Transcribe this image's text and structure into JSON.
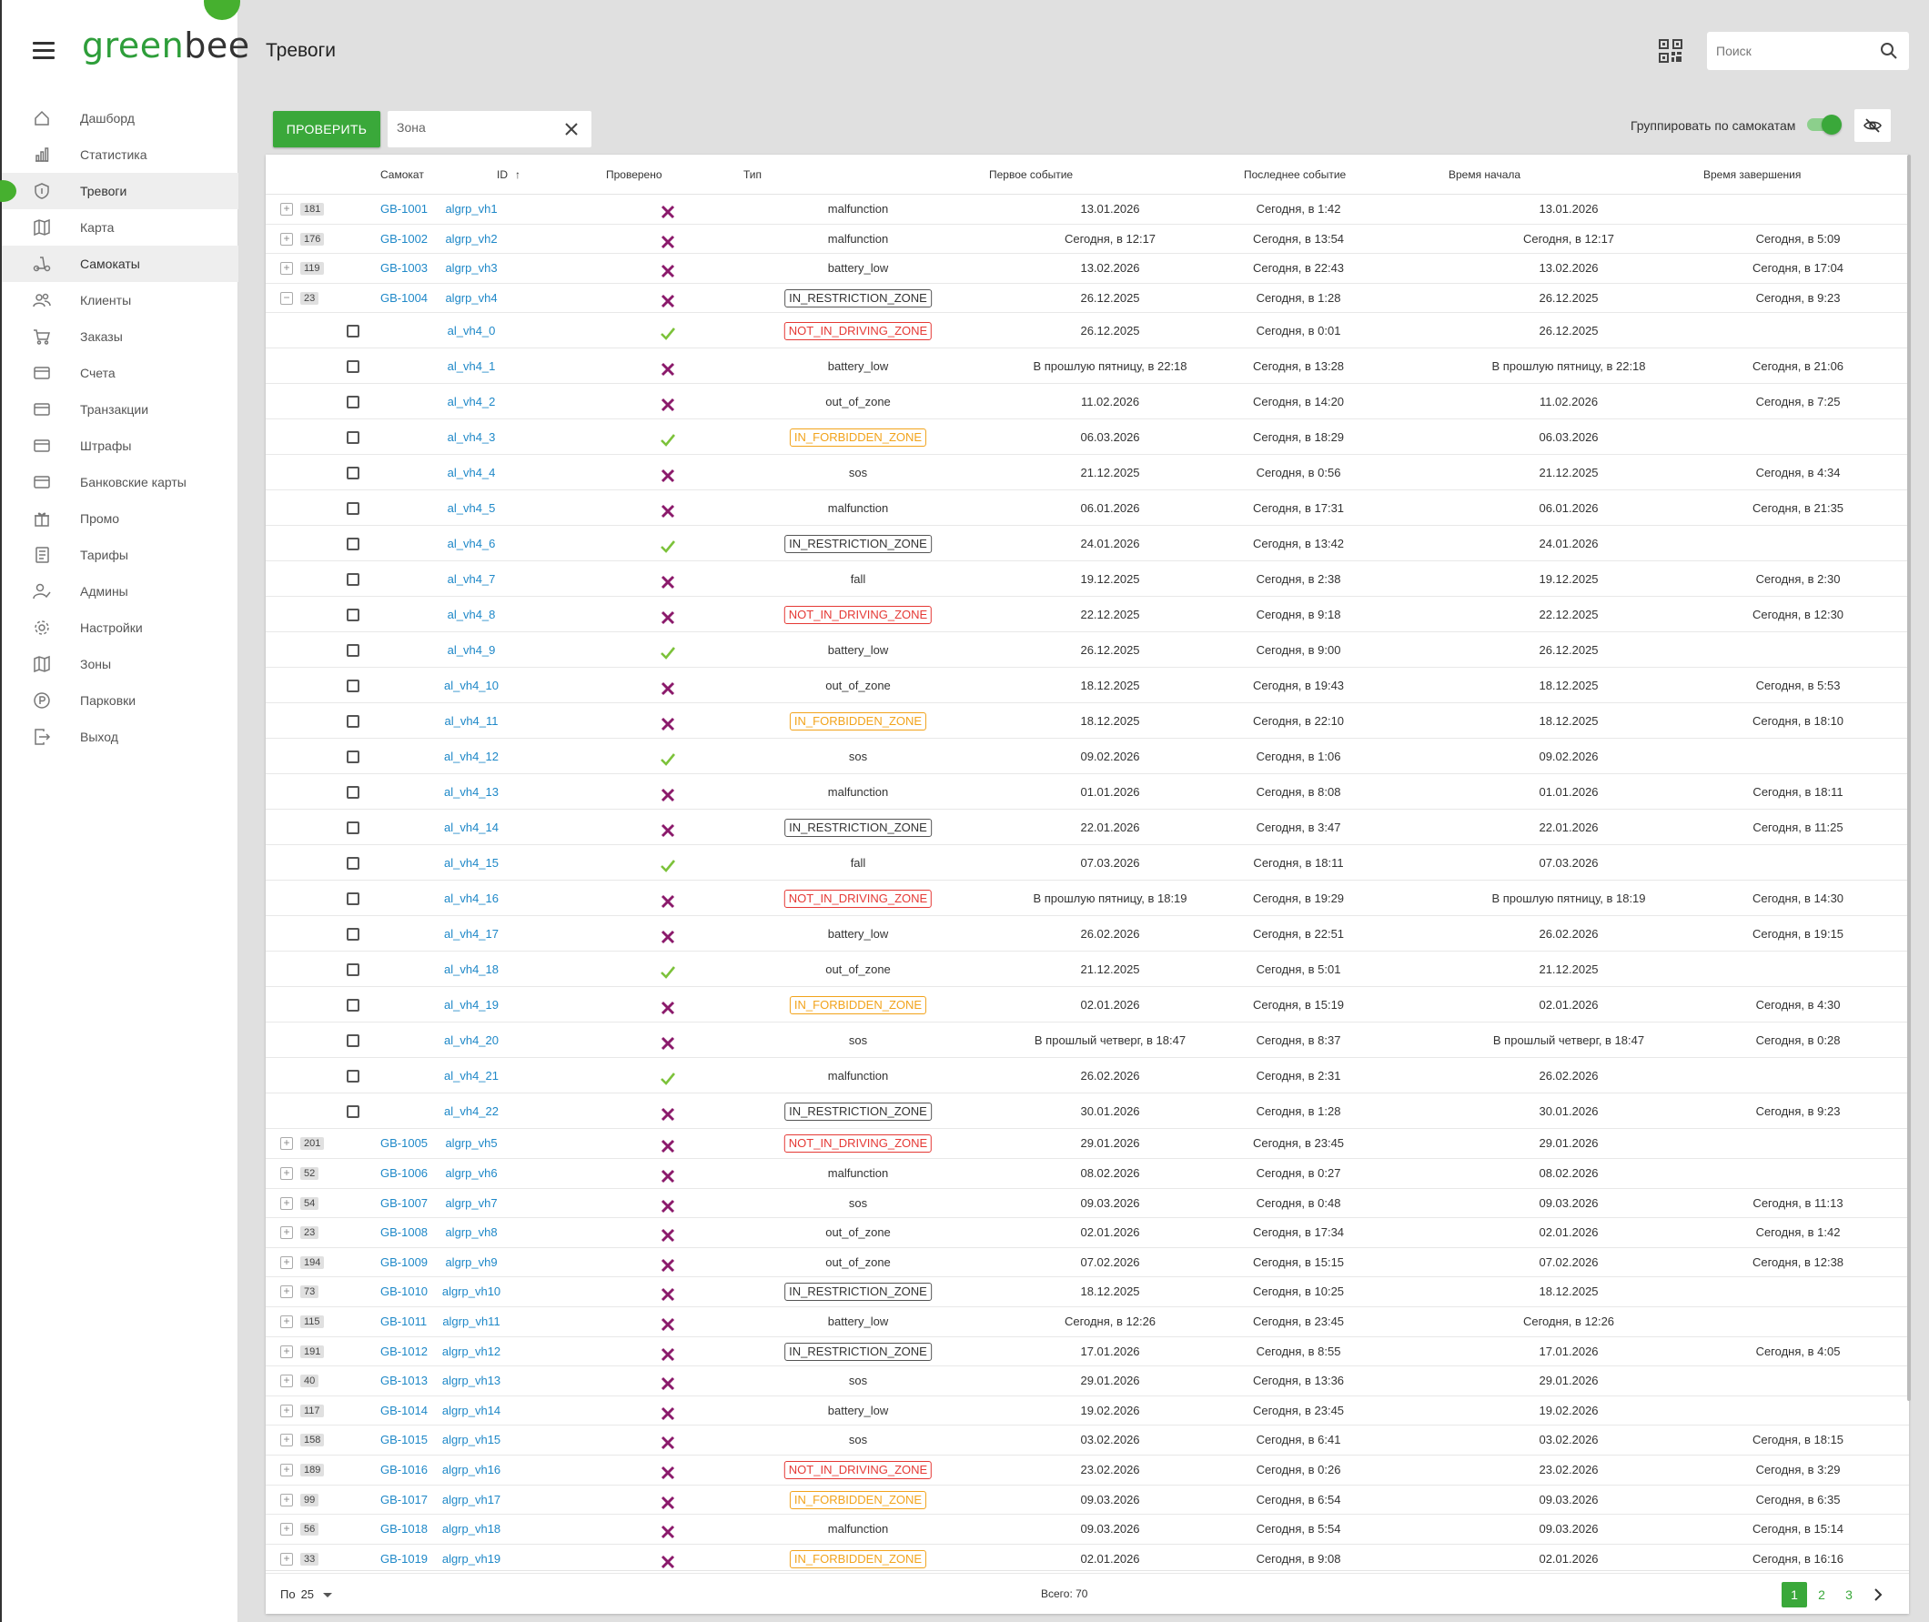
{
  "brand": {
    "logo_green": "green",
    "logo_dark": "bee"
  },
  "nav": [
    {
      "label": "Дашборд",
      "icon": "home-icon"
    },
    {
      "label": "Статистика",
      "icon": "bar-chart-icon"
    },
    {
      "label": "Тревоги",
      "icon": "shield-icon",
      "active": true
    },
    {
      "label": "Карта",
      "icon": "map-icon"
    },
    {
      "label": "Самокаты",
      "icon": "scooter-icon",
      "selected": true
    },
    {
      "label": "Клиенты",
      "icon": "users-icon"
    },
    {
      "label": "Заказы",
      "icon": "cart-icon"
    },
    {
      "label": "Счета",
      "icon": "card-icon"
    },
    {
      "label": "Транзакции",
      "icon": "card-icon"
    },
    {
      "label": "Штрафы",
      "icon": "card-icon"
    },
    {
      "label": "Банковские карты",
      "icon": "card-icon"
    },
    {
      "label": "Промо",
      "icon": "gift-icon"
    },
    {
      "label": "Тарифы",
      "icon": "list-icon"
    },
    {
      "label": "Админы",
      "icon": "user-check-icon"
    },
    {
      "label": "Настройки",
      "icon": "gear-icon"
    },
    {
      "label": "Зоны",
      "icon": "map-icon"
    },
    {
      "label": "Парковки",
      "icon": "parking-icon"
    },
    {
      "label": "Выход",
      "icon": "logout-icon"
    }
  ],
  "header": {
    "title": "Тревоги",
    "search_placeholder": "Поиск"
  },
  "toolbar": {
    "check_label": "ПРОВЕРИТЬ",
    "zone_placeholder": "Зона",
    "group_label": "Группировать по самокатам",
    "group_on": true
  },
  "colors": {
    "accent": "#3aa83a",
    "link": "#1e88c8",
    "cross": "#8b1a6b",
    "check": "#7cc23a",
    "restr": "#555555",
    "notdrive": "#e53935",
    "forbid": "#f2a31b"
  },
  "columns": [
    "Самокат",
    "ID",
    "Проверено",
    "Тип",
    "Первое событие",
    "Последнее событие",
    "Время начала",
    "Время завершения"
  ],
  "groups_top": [
    {
      "count": "181",
      "scooter": "GB-1001",
      "id": "algrp_vh1",
      "checked": false,
      "type": "malfunction",
      "first": "13.01.2026",
      "last": "Сегодня, в 1:42",
      "start": "13.01.2026",
      "end": ""
    },
    {
      "count": "176",
      "scooter": "GB-1002",
      "id": "algrp_vh2",
      "checked": false,
      "type": "malfunction",
      "first": "Сегодня, в 12:17",
      "last": "Сегодня, в 13:54",
      "start": "Сегодня, в 12:17",
      "end": "Сегодня, в 5:09"
    },
    {
      "count": "119",
      "scooter": "GB-1003",
      "id": "algrp_vh3",
      "checked": false,
      "type": "battery_low",
      "first": "13.02.2026",
      "last": "Сегодня, в 22:43",
      "start": "13.02.2026",
      "end": "Сегодня, в 17:04"
    },
    {
      "count": "23",
      "scooter": "GB-1004",
      "id": "algrp_vh4",
      "checked": false,
      "type": "IN_RESTRICTION_ZONE",
      "first": "26.12.2025",
      "last": "Сегодня, в 1:28",
      "start": "26.12.2025",
      "end": "Сегодня, в 9:23",
      "expanded": true
    }
  ],
  "children": [
    {
      "id": "al_vh4_0",
      "checked": true,
      "type": "NOT_IN_DRIVING_ZONE",
      "first": "26.12.2025",
      "last": "Сегодня, в 0:01",
      "start": "26.12.2025",
      "end": ""
    },
    {
      "id": "al_vh4_1",
      "checked": false,
      "type": "battery_low",
      "first": "В прошлую пятницу, в 22:18",
      "last": "Сегодня, в 13:28",
      "start": "В прошлую пятницу, в 22:18",
      "end": "Сегодня, в 21:06"
    },
    {
      "id": "al_vh4_2",
      "checked": false,
      "type": "out_of_zone",
      "first": "11.02.2026",
      "last": "Сегодня, в 14:20",
      "start": "11.02.2026",
      "end": "Сегодня, в 7:25"
    },
    {
      "id": "al_vh4_3",
      "checked": true,
      "type": "IN_FORBIDDEN_ZONE",
      "first": "06.03.2026",
      "last": "Сегодня, в 18:29",
      "start": "06.03.2026",
      "end": ""
    },
    {
      "id": "al_vh4_4",
      "checked": false,
      "type": "sos",
      "first": "21.12.2025",
      "last": "Сегодня, в 0:56",
      "start": "21.12.2025",
      "end": "Сегодня, в 4:34"
    },
    {
      "id": "al_vh4_5",
      "checked": false,
      "type": "malfunction",
      "first": "06.01.2026",
      "last": "Сегодня, в 17:31",
      "start": "06.01.2026",
      "end": "Сегодня, в 21:35"
    },
    {
      "id": "al_vh4_6",
      "checked": true,
      "type": "IN_RESTRICTION_ZONE",
      "first": "24.01.2026",
      "last": "Сегодня, в 13:42",
      "start": "24.01.2026",
      "end": ""
    },
    {
      "id": "al_vh4_7",
      "checked": false,
      "type": "fall",
      "first": "19.12.2025",
      "last": "Сегодня, в 2:38",
      "start": "19.12.2025",
      "end": "Сегодня, в 2:30"
    },
    {
      "id": "al_vh4_8",
      "checked": false,
      "type": "NOT_IN_DRIVING_ZONE",
      "first": "22.12.2025",
      "last": "Сегодня, в 9:18",
      "start": "22.12.2025",
      "end": "Сегодня, в 12:30"
    },
    {
      "id": "al_vh4_9",
      "checked": true,
      "type": "battery_low",
      "first": "26.12.2025",
      "last": "Сегодня, в 9:00",
      "start": "26.12.2025",
      "end": ""
    },
    {
      "id": "al_vh4_10",
      "checked": false,
      "type": "out_of_zone",
      "first": "18.12.2025",
      "last": "Сегодня, в 19:43",
      "start": "18.12.2025",
      "end": "Сегодня, в 5:53"
    },
    {
      "id": "al_vh4_11",
      "checked": false,
      "type": "IN_FORBIDDEN_ZONE",
      "first": "18.12.2025",
      "last": "Сегодня, в 22:10",
      "start": "18.12.2025",
      "end": "Сегодня, в 18:10"
    },
    {
      "id": "al_vh4_12",
      "checked": true,
      "type": "sos",
      "first": "09.02.2026",
      "last": "Сегодня, в 1:06",
      "start": "09.02.2026",
      "end": ""
    },
    {
      "id": "al_vh4_13",
      "checked": false,
      "type": "malfunction",
      "first": "01.01.2026",
      "last": "Сегодня, в 8:08",
      "start": "01.01.2026",
      "end": "Сегодня, в 18:11"
    },
    {
      "id": "al_vh4_14",
      "checked": false,
      "type": "IN_RESTRICTION_ZONE",
      "first": "22.01.2026",
      "last": "Сегодня, в 3:47",
      "start": "22.01.2026",
      "end": "Сегодня, в 11:25"
    },
    {
      "id": "al_vh4_15",
      "checked": true,
      "type": "fall",
      "first": "07.03.2026",
      "last": "Сегодня, в 18:11",
      "start": "07.03.2026",
      "end": ""
    },
    {
      "id": "al_vh4_16",
      "checked": false,
      "type": "NOT_IN_DRIVING_ZONE",
      "first": "В прошлую пятницу, в 18:19",
      "last": "Сегодня, в 19:29",
      "start": "В прошлую пятницу, в 18:19",
      "end": "Сегодня, в 14:30"
    },
    {
      "id": "al_vh4_17",
      "checked": false,
      "type": "battery_low",
      "first": "26.02.2026",
      "last": "Сегодня, в 22:51",
      "start": "26.02.2026",
      "end": "Сегодня, в 19:15"
    },
    {
      "id": "al_vh4_18",
      "checked": true,
      "type": "out_of_zone",
      "first": "21.12.2025",
      "last": "Сегодня, в 5:01",
      "start": "21.12.2025",
      "end": ""
    },
    {
      "id": "al_vh4_19",
      "checked": false,
      "type": "IN_FORBIDDEN_ZONE",
      "first": "02.01.2026",
      "last": "Сегодня, в 15:19",
      "start": "02.01.2026",
      "end": "Сегодня, в 4:30"
    },
    {
      "id": "al_vh4_20",
      "checked": false,
      "type": "sos",
      "first": "В прошлый четверг, в 18:47",
      "last": "Сегодня, в 8:37",
      "start": "В прошлый четверг, в 18:47",
      "end": "Сегодня, в 0:28"
    },
    {
      "id": "al_vh4_21",
      "checked": true,
      "type": "malfunction",
      "first": "26.02.2026",
      "last": "Сегодня, в 2:31",
      "start": "26.02.2026",
      "end": ""
    },
    {
      "id": "al_vh4_22",
      "checked": false,
      "type": "IN_RESTRICTION_ZONE",
      "first": "30.01.2026",
      "last": "Сегодня, в 1:28",
      "start": "30.01.2026",
      "end": "Сегодня, в 9:23"
    }
  ],
  "groups_bottom": [
    {
      "count": "201",
      "scooter": "GB-1005",
      "id": "algrp_vh5",
      "checked": false,
      "type": "NOT_IN_DRIVING_ZONE",
      "first": "29.01.2026",
      "last": "Сегодня, в 23:45",
      "start": "29.01.2026",
      "end": ""
    },
    {
      "count": "52",
      "scooter": "GB-1006",
      "id": "algrp_vh6",
      "checked": false,
      "type": "malfunction",
      "first": "08.02.2026",
      "last": "Сегодня, в 0:27",
      "start": "08.02.2026",
      "end": ""
    },
    {
      "count": "54",
      "scooter": "GB-1007",
      "id": "algrp_vh7",
      "checked": false,
      "type": "sos",
      "first": "09.03.2026",
      "last": "Сегодня, в 0:48",
      "start": "09.03.2026",
      "end": "Сегодня, в 11:13"
    },
    {
      "count": "23",
      "scooter": "GB-1008",
      "id": "algrp_vh8",
      "checked": false,
      "type": "out_of_zone",
      "first": "02.01.2026",
      "last": "Сегодня, в 17:34",
      "start": "02.01.2026",
      "end": "Сегодня, в 1:42"
    },
    {
      "count": "194",
      "scooter": "GB-1009",
      "id": "algrp_vh9",
      "checked": false,
      "type": "out_of_zone",
      "first": "07.02.2026",
      "last": "Сегодня, в 15:15",
      "start": "07.02.2026",
      "end": "Сегодня, в 12:38"
    },
    {
      "count": "73",
      "scooter": "GB-1010",
      "id": "algrp_vh10",
      "checked": false,
      "type": "IN_RESTRICTION_ZONE",
      "first": "18.12.2025",
      "last": "Сегодня, в 10:25",
      "start": "18.12.2025",
      "end": ""
    },
    {
      "count": "115",
      "scooter": "GB-1011",
      "id": "algrp_vh11",
      "checked": false,
      "type": "battery_low",
      "first": "Сегодня, в 12:26",
      "last": "Сегодня, в 23:45",
      "start": "Сегодня, в 12:26",
      "end": ""
    },
    {
      "count": "191",
      "scooter": "GB-1012",
      "id": "algrp_vh12",
      "checked": false,
      "type": "IN_RESTRICTION_ZONE",
      "first": "17.01.2026",
      "last": "Сегодня, в 8:55",
      "start": "17.01.2026",
      "end": "Сегодня, в 4:05"
    },
    {
      "count": "40",
      "scooter": "GB-1013",
      "id": "algrp_vh13",
      "checked": false,
      "type": "sos",
      "first": "29.01.2026",
      "last": "Сегодня, в 13:36",
      "start": "29.01.2026",
      "end": ""
    },
    {
      "count": "117",
      "scooter": "GB-1014",
      "id": "algrp_vh14",
      "checked": false,
      "type": "battery_low",
      "first": "19.02.2026",
      "last": "Сегодня, в 23:45",
      "start": "19.02.2026",
      "end": ""
    },
    {
      "count": "158",
      "scooter": "GB-1015",
      "id": "algrp_vh15",
      "checked": false,
      "type": "sos",
      "first": "03.02.2026",
      "last": "Сегодня, в 6:41",
      "start": "03.02.2026",
      "end": "Сегодня, в 18:15"
    },
    {
      "count": "189",
      "scooter": "GB-1016",
      "id": "algrp_vh16",
      "checked": false,
      "type": "NOT_IN_DRIVING_ZONE",
      "first": "23.02.2026",
      "last": "Сегодня, в 0:26",
      "start": "23.02.2026",
      "end": "Сегодня, в 3:29"
    },
    {
      "count": "99",
      "scooter": "GB-1017",
      "id": "algrp_vh17",
      "checked": false,
      "type": "IN_FORBIDDEN_ZONE",
      "first": "09.03.2026",
      "last": "Сегодня, в 6:54",
      "start": "09.03.2026",
      "end": "Сегодня, в 6:35"
    },
    {
      "count": "56",
      "scooter": "GB-1018",
      "id": "algrp_vh18",
      "checked": false,
      "type": "malfunction",
      "first": "09.03.2026",
      "last": "Сегодня, в 5:54",
      "start": "09.03.2026",
      "end": "Сегодня, в 15:14"
    },
    {
      "count": "33",
      "scooter": "GB-1019",
      "id": "algrp_vh19",
      "checked": false,
      "type": "IN_FORBIDDEN_ZONE",
      "first": "02.01.2026",
      "last": "Сегодня, в 9:08",
      "start": "02.01.2026",
      "end": "Сегодня, в 16:16"
    }
  ],
  "footer": {
    "per_page_label": "По",
    "per_page_value": "25",
    "total": "Всего: 70",
    "pages": [
      "1",
      "2",
      "3"
    ],
    "current_page": "1"
  }
}
